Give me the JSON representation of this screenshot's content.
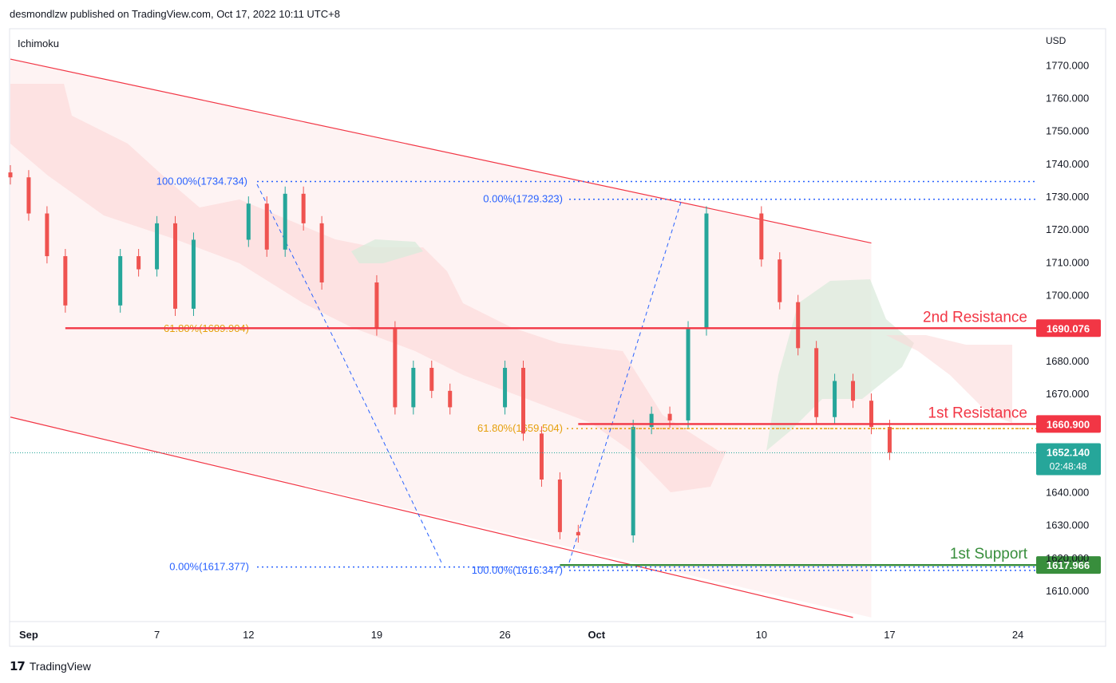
{
  "header": {
    "publisher_line": "desmondlzw published on TradingView.com, Oct 17, 2022 10:11 UTC+8"
  },
  "footer": {
    "brand": "TradingView",
    "logo_icon": "tradingview-logo-icon"
  },
  "indicator": {
    "label": "Ichimoku"
  },
  "axis": {
    "currency": "USD"
  },
  "colors": {
    "up": "#26a69a",
    "down": "#ef5350",
    "channel": "#f23645",
    "resistance": "#f23645",
    "support": "#388e3c",
    "fib_text": "#2962ff",
    "fib_gold": "#e5a00d",
    "cloud_red": "#fcd7d7",
    "cloud_green": "#dbebdc",
    "last_price": "#26a69a"
  },
  "chart_data": {
    "type": "candlestick",
    "title": "",
    "ylim": [
      1601,
      1781
    ],
    "y_ticks": [
      {
        "value": 1770,
        "label": "1770.000"
      },
      {
        "value": 1760,
        "label": "1760.000"
      },
      {
        "value": 1750,
        "label": "1750.000"
      },
      {
        "value": 1740,
        "label": "1740.000"
      },
      {
        "value": 1730,
        "label": "1730.000"
      },
      {
        "value": 1720,
        "label": "1720.000"
      },
      {
        "value": 1710,
        "label": "1710.000"
      },
      {
        "value": 1700,
        "label": "1700.000"
      },
      {
        "value": 1680,
        "label": "1680.000"
      },
      {
        "value": 1670,
        "label": "1670.000"
      },
      {
        "value": 1640,
        "label": "1640.000"
      },
      {
        "value": 1630,
        "label": "1630.000"
      },
      {
        "value": 1620,
        "label": "1620.000"
      },
      {
        "value": 1610,
        "label": "1610.000"
      }
    ],
    "x_ticks": [
      {
        "date": "2022-08-31",
        "label": "Sep",
        "bold": true
      },
      {
        "date": "2022-09-07",
        "label": "7",
        "bold": false
      },
      {
        "date": "2022-09-12",
        "label": "12",
        "bold": false
      },
      {
        "date": "2022-09-19",
        "label": "19",
        "bold": false
      },
      {
        "date": "2022-09-26",
        "label": "26",
        "bold": false
      },
      {
        "date": "2022-10-01",
        "label": "Oct",
        "bold": true
      },
      {
        "date": "2022-10-10",
        "label": "10",
        "bold": false
      },
      {
        "date": "2022-10-17",
        "label": "17",
        "bold": false
      },
      {
        "date": "2022-10-24",
        "label": "24",
        "bold": false
      }
    ],
    "x_range": [
      "2022-08-30",
      "2022-10-25"
    ],
    "closes": [
      {
        "date": "2022-08-30",
        "close": 1736
      },
      {
        "date": "2022-08-31",
        "close": 1725
      },
      {
        "date": "2022-09-01",
        "close": 1712
      },
      {
        "date": "2022-09-02",
        "close": 1697
      },
      {
        "date": "2022-09-05",
        "close": 1712
      },
      {
        "date": "2022-09-06",
        "close": 1708
      },
      {
        "date": "2022-09-07",
        "close": 1722
      },
      {
        "date": "2022-09-08",
        "close": 1696
      },
      {
        "date": "2022-09-09",
        "close": 1717
      },
      {
        "date": "2022-09-12",
        "close": 1728
      },
      {
        "date": "2022-09-13",
        "close": 1714
      },
      {
        "date": "2022-09-14",
        "close": 1731
      },
      {
        "date": "2022-09-15",
        "close": 1722
      },
      {
        "date": "2022-09-16",
        "close": 1704
      },
      {
        "date": "2022-09-19",
        "close": 1690
      },
      {
        "date": "2022-09-20",
        "close": 1666
      },
      {
        "date": "2022-09-21",
        "close": 1678
      },
      {
        "date": "2022-09-22",
        "close": 1671
      },
      {
        "date": "2022-09-23",
        "close": 1666
      },
      {
        "date": "2022-09-26",
        "close": 1678
      },
      {
        "date": "2022-09-27",
        "close": 1658
      },
      {
        "date": "2022-09-28",
        "close": 1644
      },
      {
        "date": "2022-09-29",
        "close": 1628
      },
      {
        "date": "2022-09-30",
        "close": 1627
      },
      {
        "date": "2022-10-03",
        "close": 1660
      },
      {
        "date": "2022-10-04",
        "close": 1664
      },
      {
        "date": "2022-10-05",
        "close": 1662
      },
      {
        "date": "2022-10-06",
        "close": 1690
      },
      {
        "date": "2022-10-07",
        "close": 1725
      },
      {
        "date": "2022-10-10",
        "close": 1711
      },
      {
        "date": "2022-10-11",
        "close": 1698
      },
      {
        "date": "2022-10-12",
        "close": 1684
      },
      {
        "date": "2022-10-13",
        "close": 1663
      },
      {
        "date": "2022-10-14",
        "close": 1674
      },
      {
        "date": "2022-10-15",
        "close": 1668
      },
      {
        "date": "2022-10-16",
        "close": 1660
      },
      {
        "date": "2022-10-17",
        "close": 1652.14
      }
    ],
    "levels": [
      {
        "name": "2nd Resistance",
        "label": "2nd Resistance",
        "value": 1690.076,
        "price_tag": "1690.076",
        "kind": "resistance",
        "start_date": "2022-09-02"
      },
      {
        "name": "1st Resistance",
        "label": "1st Resistance",
        "value": 1660.9,
        "price_tag": "1660.900",
        "kind": "resistance",
        "start_date": "2022-09-30"
      },
      {
        "name": "1st Support",
        "label": "1st Support",
        "value": 1617.966,
        "price_tag": "1617.966",
        "kind": "support",
        "start_date": "2022-09-29"
      }
    ],
    "last_price": {
      "value": 1652.14,
      "label": "1652.140",
      "countdown": "02:48:48"
    },
    "fibonacci": [
      {
        "label": "100.00%(1734.734)",
        "value": 1734.734,
        "color": "blue"
      },
      {
        "label": "0.00%(1729.323)",
        "value": 1729.323,
        "color": "blue"
      },
      {
        "label": "61.80%(1689.904)",
        "value": 1689.904,
        "color": "gold"
      },
      {
        "label": "61.80%(1659.504)",
        "value": 1659.504,
        "color": "gold"
      },
      {
        "label": "0.00%(1617.377)",
        "value": 1617.377,
        "color": "blue"
      },
      {
        "label": "100.00%(1616.347)",
        "value": 1616.347,
        "color": "blue"
      }
    ],
    "channel": {
      "upper": [
        {
          "date": "2022-08-30",
          "value": 1772
        },
        {
          "date": "2022-10-16",
          "value": 1716
        }
      ],
      "lower": [
        {
          "date": "2022-08-30",
          "value": 1663
        },
        {
          "date": "2022-10-15",
          "value": 1602
        }
      ]
    }
  }
}
